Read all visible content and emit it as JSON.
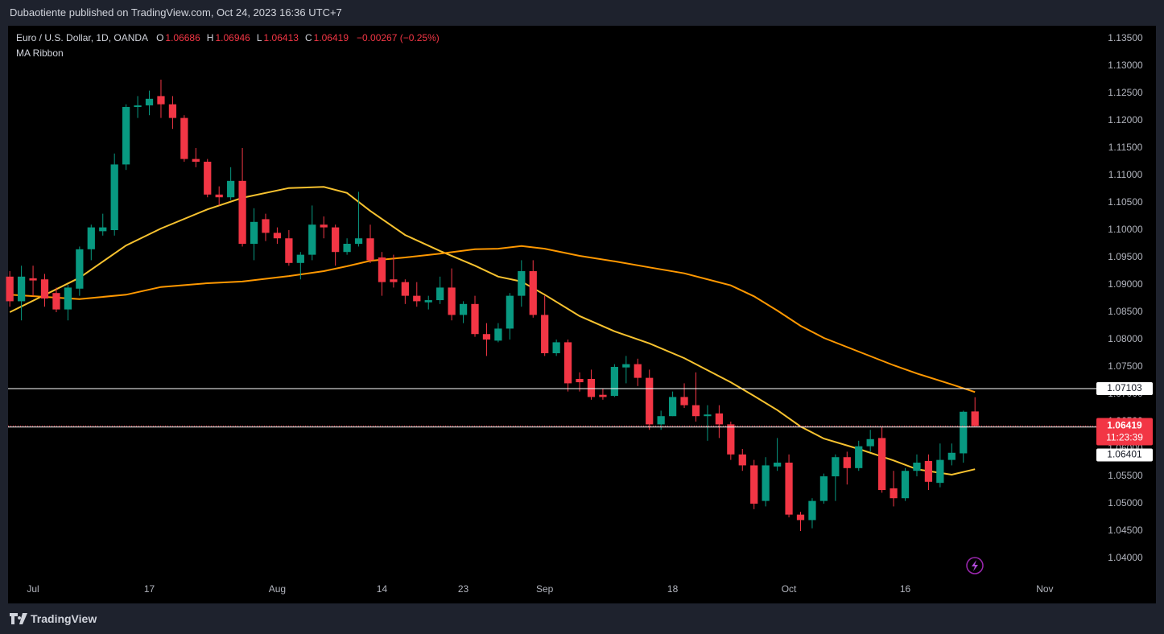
{
  "header": {
    "title": "Dubaotiente published on TradingView.com, Oct 24, 2023 16:36 UTC+7"
  },
  "footer": {
    "brand": "TradingView"
  },
  "chart_data": {
    "type": "candlestick",
    "title": "Euro / U.S. Dollar, 1D, OANDA",
    "ohlc_labels": [
      "O",
      "H",
      "L",
      "C"
    ],
    "change": "−0.00267 (−0.25%)",
    "indicator": "MA Ribbon",
    "up_color": "#089981",
    "down_color": "#f23645",
    "open": [
      1.0915,
      1.087,
      1.0912,
      1.091,
      1.0885,
      1.0855,
      1.0893,
      1.0965,
      1.0998,
      1.1,
      1.112,
      1.1225,
      1.1228,
      1.1245,
      1.123,
      1.1205,
      1.113,
      1.1125,
      1.1065,
      1.106,
      1.109,
      1.0975,
      1.102,
      1.0995,
      1.0985,
      1.094,
      1.0955,
      1.101,
      1.1005,
      1.096,
      1.0975,
      1.0985,
      1.095,
      1.091,
      1.0905,
      1.088,
      1.0868,
      1.0872,
      1.0895,
      1.0845,
      1.0865,
      1.081,
      1.0798,
      1.082,
      1.088,
      1.0925,
      1.0845,
      1.0775,
      1.0795,
      1.0728,
      1.0728,
      1.0699,
      1.0697,
      1.0749,
      1.0755,
      1.073,
      1.0645,
      1.066,
      1.0695,
      1.068,
      1.066,
      1.0665,
      1.0645,
      1.059,
      1.057,
      1.0505,
      1.0568,
      1.0575,
      1.048,
      1.047,
      1.0505,
      1.055,
      1.0585,
      1.0565,
      1.0605,
      1.062,
      1.0528,
      1.051,
      1.056,
      1.0578,
      1.0538,
      1.058,
      1.0592,
      1.06686
    ],
    "high": [
      1.0925,
      1.0935,
      1.0935,
      1.092,
      1.0895,
      1.09,
      1.097,
      1.101,
      1.103,
      1.114,
      1.123,
      1.1245,
      1.1255,
      1.1275,
      1.1245,
      1.121,
      1.115,
      1.113,
      1.108,
      1.1115,
      1.115,
      1.104,
      1.103,
      1.1005,
      1.1,
      1.096,
      1.1045,
      1.1025,
      1.101,
      1.0985,
      1.107,
      1.101,
      1.096,
      1.0955,
      1.091,
      1.0905,
      1.088,
      1.0915,
      1.093,
      1.087,
      1.088,
      1.083,
      1.083,
      1.0885,
      1.0945,
      1.0945,
      1.088,
      1.08,
      1.08,
      1.074,
      1.0745,
      1.071,
      1.0755,
      1.077,
      1.0765,
      1.0745,
      1.067,
      1.0705,
      1.072,
      1.074,
      1.068,
      1.068,
      1.065,
      1.06,
      1.058,
      1.0585,
      1.062,
      1.059,
      1.0485,
      1.051,
      1.0555,
      1.059,
      1.0595,
      1.0615,
      1.0635,
      1.064,
      1.056,
      1.0565,
      1.059,
      1.059,
      1.061,
      1.061,
      1.067,
      1.06946
    ],
    "low": [
      1.086,
      1.0835,
      1.088,
      1.086,
      1.085,
      1.0835,
      1.088,
      1.0945,
      1.099,
      1.099,
      1.111,
      1.1205,
      1.121,
      1.1205,
      1.1185,
      1.1125,
      1.1115,
      1.106,
      1.1045,
      1.1055,
      1.097,
      1.0945,
      1.098,
      1.0975,
      1.0935,
      1.091,
      1.0945,
      1.0985,
      1.0935,
      1.0955,
      1.097,
      1.094,
      1.088,
      1.0895,
      1.0865,
      1.086,
      1.0855,
      1.0865,
      1.0835,
      1.083,
      1.0805,
      1.077,
      1.0795,
      1.08,
      1.086,
      1.084,
      1.077,
      1.077,
      1.0705,
      1.0705,
      1.069,
      1.069,
      1.0695,
      1.072,
      1.0715,
      1.0635,
      1.0635,
      1.066,
      1.0675,
      1.065,
      1.0615,
      1.062,
      1.058,
      1.056,
      1.049,
      1.0495,
      1.056,
      1.0475,
      1.045,
      1.0455,
      1.05,
      1.0505,
      1.0535,
      1.056,
      1.0595,
      1.052,
      1.0495,
      1.0505,
      1.055,
      1.0525,
      1.053,
      1.057,
      1.0575,
      1.06413
    ],
    "close": [
      1.087,
      1.0915,
      1.0908,
      1.0875,
      1.0855,
      1.0895,
      1.0965,
      1.1005,
      1.1005,
      1.112,
      1.1225,
      1.1228,
      1.124,
      1.123,
      1.1205,
      1.113,
      1.1125,
      1.1065,
      1.106,
      1.109,
      1.0975,
      1.1015,
      1.0995,
      1.0985,
      1.094,
      1.0955,
      1.101,
      1.1005,
      1.096,
      1.0975,
      1.0985,
      1.0945,
      1.0905,
      1.0905,
      1.088,
      1.087,
      1.0872,
      1.0895,
      1.0845,
      1.0865,
      1.081,
      1.08,
      1.082,
      1.088,
      1.0925,
      1.0845,
      1.0775,
      1.0795,
      1.072,
      1.0722,
      1.0695,
      1.0695,
      1.075,
      1.0755,
      1.073,
      1.0645,
      1.066,
      1.0695,
      1.068,
      1.066,
      1.0663,
      1.0645,
      1.059,
      1.057,
      1.05,
      1.057,
      1.0575,
      1.048,
      1.047,
      1.0505,
      1.055,
      1.0585,
      1.0565,
      1.0605,
      1.0618,
      1.0525,
      1.051,
      1.056,
      1.0575,
      1.054,
      1.058,
      1.0593,
      1.0668,
      1.06419
    ],
    "series": [
      {
        "color": "#f7c22f",
        "x": [
          0,
          6,
          10,
          13,
          17,
          20,
          24,
          27,
          29,
          31,
          34,
          37,
          40,
          42,
          44,
          46,
          49,
          52,
          55,
          58,
          62,
          64,
          66,
          68,
          70,
          73,
          76,
          78,
          81,
          83
        ],
        "values": [
          1.085,
          1.0913,
          1.0972,
          1.1003,
          1.1038,
          1.1059,
          1.1077,
          1.1079,
          1.1068,
          1.1035,
          1.0991,
          1.0962,
          1.0935,
          1.0915,
          1.0906,
          1.0882,
          1.0843,
          1.0815,
          1.0793,
          1.0766,
          1.0722,
          1.0697,
          1.0671,
          1.0641,
          1.0619,
          1.06,
          1.0579,
          1.0563,
          1.0553,
          1.0563
        ]
      },
      {
        "color": "#ff9800",
        "x": [
          0,
          6,
          10,
          13,
          17,
          20,
          24,
          27,
          29,
          31,
          34,
          37,
          40,
          42,
          44,
          46,
          49,
          52,
          55,
          58,
          62,
          64,
          66,
          68,
          70,
          73,
          76,
          78,
          81,
          83
        ],
        "values": [
          1.0882,
          1.0874,
          1.0882,
          1.0896,
          1.0903,
          1.0906,
          1.0916,
          1.0925,
          1.0934,
          1.0944,
          1.095,
          1.0957,
          1.0965,
          1.0966,
          1.0971,
          1.0966,
          1.0953,
          1.0943,
          1.0932,
          1.0921,
          1.0899,
          1.0879,
          1.0853,
          1.0825,
          1.0803,
          1.0778,
          1.0753,
          1.0738,
          1.0718,
          1.0704
        ]
      }
    ],
    "price_lines": [
      1.07103,
      1.06401
    ],
    "countdown": "11:23:39",
    "xlim": [
      -0.15,
      93.3
    ],
    "xticks": [
      {
        "value": 2,
        "label": "Jul"
      },
      {
        "value": 12,
        "label": "17"
      },
      {
        "value": 23,
        "label": "Aug"
      },
      {
        "value": 32,
        "label": "14"
      },
      {
        "value": 39,
        "label": "23"
      },
      {
        "value": 46,
        "label": "Sep"
      },
      {
        "value": 57,
        "label": "18"
      },
      {
        "value": 67,
        "label": "Oct"
      },
      {
        "value": 77,
        "label": "16"
      },
      {
        "value": 89,
        "label": "Nov"
      }
    ],
    "ylim": [
      1.03618,
      1.13706
    ],
    "yticks": [
      {
        "value": 1.135,
        "label": "1.13500"
      },
      {
        "value": 1.13,
        "label": "1.13000"
      },
      {
        "value": 1.125,
        "label": "1.12500"
      },
      {
        "value": 1.12,
        "label": "1.12000"
      },
      {
        "value": 1.115,
        "label": "1.11500"
      },
      {
        "value": 1.11,
        "label": "1.11000"
      },
      {
        "value": 1.105,
        "label": "1.10500"
      },
      {
        "value": 1.1,
        "label": "1.10000"
      },
      {
        "value": 1.095,
        "label": "1.09500"
      },
      {
        "value": 1.09,
        "label": "1.09000"
      },
      {
        "value": 1.085,
        "label": "1.08500"
      },
      {
        "value": 1.08,
        "label": "1.08000"
      },
      {
        "value": 1.075,
        "label": "1.07500"
      },
      {
        "value": 1.07,
        "label": "1.07000"
      },
      {
        "value": 1.065,
        "label": "1.06500"
      },
      {
        "value": 1.06,
        "label": "1.06000"
      },
      {
        "value": 1.055,
        "label": "1.05500"
      },
      {
        "value": 1.05,
        "label": "1.05000"
      },
      {
        "value": 1.045,
        "label": "1.04500"
      },
      {
        "value": 1.04,
        "label": "1.04000"
      }
    ],
    "grid": false
  }
}
